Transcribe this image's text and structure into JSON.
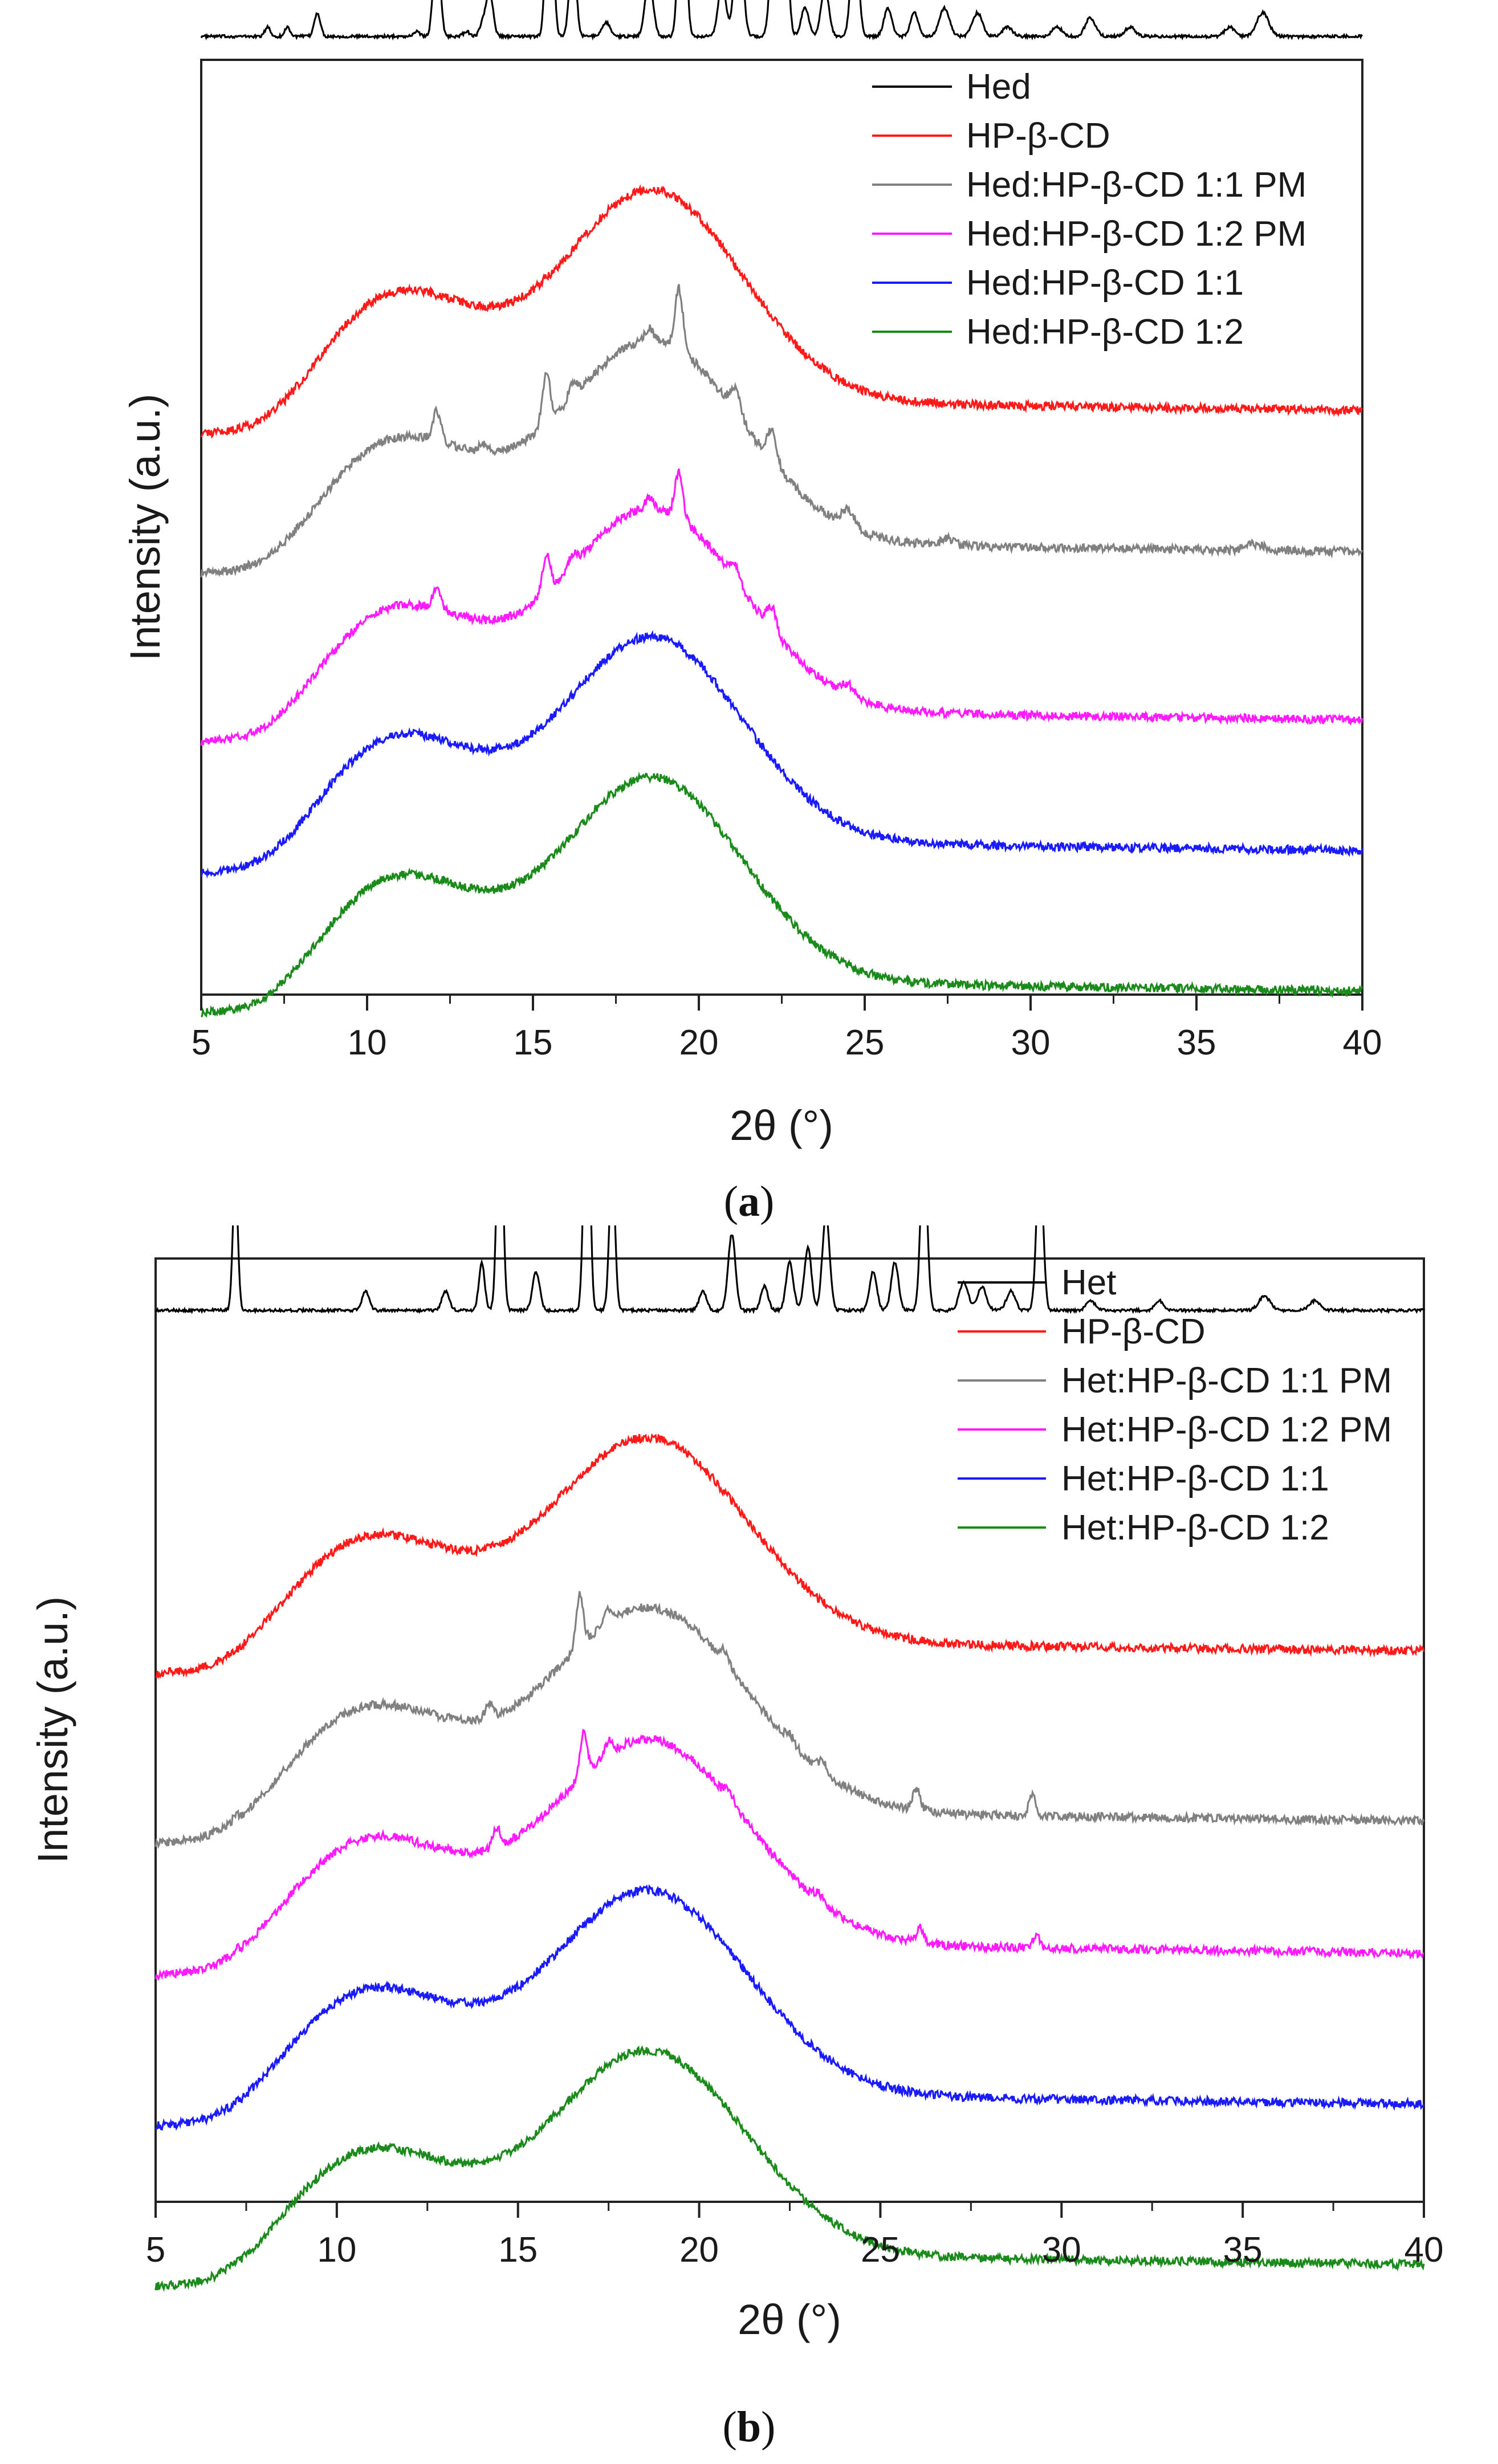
{
  "chart_data": [
    {
      "type": "line",
      "panel_label": "a",
      "title": "",
      "xlabel": "2θ (°)",
      "ylabel": "Intensity (a.u.)",
      "xlim": [
        5,
        40
      ],
      "xticks": [
        "5",
        "10",
        "15",
        "20",
        "25",
        "30",
        "35",
        "40"
      ],
      "yticks": [],
      "grid": false,
      "legend_position": "top-right",
      "series": [
        {
          "name": "Hed",
          "color": "#000000",
          "style": "crystal",
          "offset": 1.02,
          "amp": 0.23,
          "peaks": [
            [
              7.0,
              0.02,
              0.08
            ],
            [
              7.6,
              0.02,
              0.08
            ],
            [
              8.5,
              0.05,
              0.09
            ],
            [
              11.5,
              0.01,
              0.1
            ],
            [
              12.1,
              0.21,
              0.1
            ],
            [
              13.0,
              0.01,
              0.1
            ],
            [
              13.5,
              0.03,
              0.1
            ],
            [
              13.7,
              0.09,
              0.1
            ],
            [
              15.5,
              0.42,
              0.1
            ],
            [
              16.2,
              0.19,
              0.1
            ],
            [
              17.2,
              0.03,
              0.12
            ],
            [
              18.5,
              0.12,
              0.12
            ],
            [
              19.5,
              0.52,
              0.1
            ],
            [
              20.7,
              0.11,
              0.12
            ],
            [
              21.2,
              0.26,
              0.12
            ],
            [
              22.3,
              0.32,
              0.12
            ],
            [
              22.6,
              0.25,
              0.1
            ],
            [
              23.2,
              0.06,
              0.12
            ],
            [
              23.8,
              0.1,
              0.12
            ],
            [
              24.7,
              0.25,
              0.11
            ],
            [
              25.7,
              0.06,
              0.12
            ],
            [
              26.5,
              0.05,
              0.12
            ],
            [
              27.4,
              0.06,
              0.15
            ],
            [
              28.4,
              0.05,
              0.15
            ],
            [
              29.3,
              0.02,
              0.15
            ],
            [
              30.8,
              0.02,
              0.15
            ],
            [
              31.8,
              0.04,
              0.15
            ],
            [
              33.0,
              0.02,
              0.15
            ],
            [
              36.0,
              0.02,
              0.15
            ],
            [
              37.0,
              0.05,
              0.18
            ]
          ]
        },
        {
          "name": "HP-β-CD",
          "color": "#ff1a1a",
          "style": "amorphous",
          "offset": 0.72,
          "amp": 0.96
        },
        {
          "name": "Hed:HP-β-CD 1:1 PM",
          "color": "#808080",
          "style": "mixture",
          "offset": 0.57,
          "amp": 0.92,
          "peaks": [
            [
              12.1,
              0.15,
              0.12
            ],
            [
              13.5,
              0.04,
              0.12
            ],
            [
              15.4,
              0.25,
              0.12
            ],
            [
              16.2,
              0.08,
              0.12
            ],
            [
              18.5,
              0.06,
              0.12
            ],
            [
              19.4,
              0.3,
              0.12
            ],
            [
              21.1,
              0.12,
              0.15
            ],
            [
              22.2,
              0.15,
              0.14
            ],
            [
              24.5,
              0.08,
              0.2
            ],
            [
              27.5,
              0.03,
              0.2
            ],
            [
              36.8,
              0.03,
              0.3
            ]
          ]
        },
        {
          "name": "Hed:HP-β-CD 1:2 PM",
          "color": "#ff1aff",
          "style": "mixture",
          "offset": 0.39,
          "amp": 0.92,
          "peaks": [
            [
              12.1,
              0.1,
              0.12
            ],
            [
              15.4,
              0.18,
              0.12
            ],
            [
              16.2,
              0.06,
              0.12
            ],
            [
              18.5,
              0.05,
              0.12
            ],
            [
              19.4,
              0.22,
              0.12
            ],
            [
              21.1,
              0.08,
              0.15
            ],
            [
              22.2,
              0.11,
              0.14
            ],
            [
              24.5,
              0.05,
              0.2
            ]
          ]
        },
        {
          "name": "Hed:HP-β-CD 1:1",
          "color": "#1a1aff",
          "style": "amorphous",
          "offset": 0.25,
          "amp": 0.93
        },
        {
          "name": "Hed:HP-β-CD 1:2",
          "color": "#1a8a1a",
          "style": "amorphous",
          "offset": 0.1,
          "amp": 0.93
        }
      ]
    },
    {
      "type": "line",
      "panel_label": "b",
      "title": "",
      "xlabel": "2θ (°)",
      "ylabel": "Intensity (a.u.)",
      "xlim": [
        5,
        40
      ],
      "xticks": [
        "5",
        "10",
        "15",
        "20",
        "25",
        "30",
        "35",
        "40"
      ],
      "yticks": [],
      "grid": false,
      "legend_position": "top-right",
      "series": [
        {
          "name": "Het",
          "color": "#000000",
          "style": "crystal",
          "offset": 0.94,
          "amp": 0.23,
          "peaks": [
            [
              7.2,
              0.28,
              0.07
            ],
            [
              10.8,
              0.04,
              0.1
            ],
            [
              13.0,
              0.04,
              0.1
            ],
            [
              14.0,
              0.1,
              0.08
            ],
            [
              14.5,
              0.5,
              0.08
            ],
            [
              15.5,
              0.08,
              0.1
            ],
            [
              16.9,
              0.59,
              0.08
            ],
            [
              17.6,
              0.3,
              0.08
            ],
            [
              20.1,
              0.04,
              0.1
            ],
            [
              20.9,
              0.16,
              0.1
            ],
            [
              21.8,
              0.05,
              0.1
            ],
            [
              22.5,
              0.1,
              0.1
            ],
            [
              23.0,
              0.13,
              0.1
            ],
            [
              23.5,
              0.2,
              0.1
            ],
            [
              24.8,
              0.08,
              0.1
            ],
            [
              25.4,
              0.1,
              0.1
            ],
            [
              26.2,
              0.35,
              0.09
            ],
            [
              27.3,
              0.06,
              0.12
            ],
            [
              27.8,
              0.05,
              0.12
            ],
            [
              28.6,
              0.04,
              0.12
            ],
            [
              29.4,
              0.33,
              0.09
            ],
            [
              30.8,
              0.02,
              0.12
            ],
            [
              32.7,
              0.02,
              0.12
            ],
            [
              35.6,
              0.03,
              0.15
            ],
            [
              37.0,
              0.02,
              0.15
            ]
          ]
        },
        {
          "name": "HP-β-CD",
          "color": "#ff1a1a",
          "style": "amorphous",
          "offset": 0.68,
          "amp": 0.92
        },
        {
          "name": "Het:HP-β-CD 1:1 PM",
          "color": "#808080",
          "style": "mixture",
          "offset": 0.5,
          "amp": 0.92,
          "peaks": [
            [
              7.2,
              0.02,
              0.08
            ],
            [
              14.2,
              0.07,
              0.1
            ],
            [
              16.7,
              0.25,
              0.1
            ],
            [
              17.5,
              0.06,
              0.1
            ],
            [
              20.7,
              0.06,
              0.12
            ],
            [
              22.5,
              0.04,
              0.12
            ],
            [
              23.4,
              0.05,
              0.12
            ],
            [
              26.0,
              0.1,
              0.1
            ],
            [
              29.2,
              0.1,
              0.1
            ]
          ]
        },
        {
          "name": "Het:HP-β-CD 1:2 PM",
          "color": "#ff1aff",
          "style": "mixture",
          "offset": 0.36,
          "amp": 0.92,
          "peaks": [
            [
              7.2,
              0.015,
              0.08
            ],
            [
              14.4,
              0.1,
              0.1
            ],
            [
              16.8,
              0.2,
              0.1
            ],
            [
              17.5,
              0.06,
              0.1
            ],
            [
              20.8,
              0.05,
              0.12
            ],
            [
              23.3,
              0.04,
              0.12
            ],
            [
              26.1,
              0.07,
              0.1
            ],
            [
              29.3,
              0.06,
              0.1
            ]
          ]
        },
        {
          "name": "Het:HP-β-CD 1:1",
          "color": "#1a1aff",
          "style": "amorphous",
          "offset": 0.2,
          "amp": 0.92
        },
        {
          "name": "Het:HP-β-CD 1:2",
          "color": "#1a8a1a",
          "style": "amorphous",
          "offset": 0.03,
          "amp": 0.92
        }
      ]
    }
  ],
  "captions": {
    "a": "a",
    "b": "b"
  }
}
